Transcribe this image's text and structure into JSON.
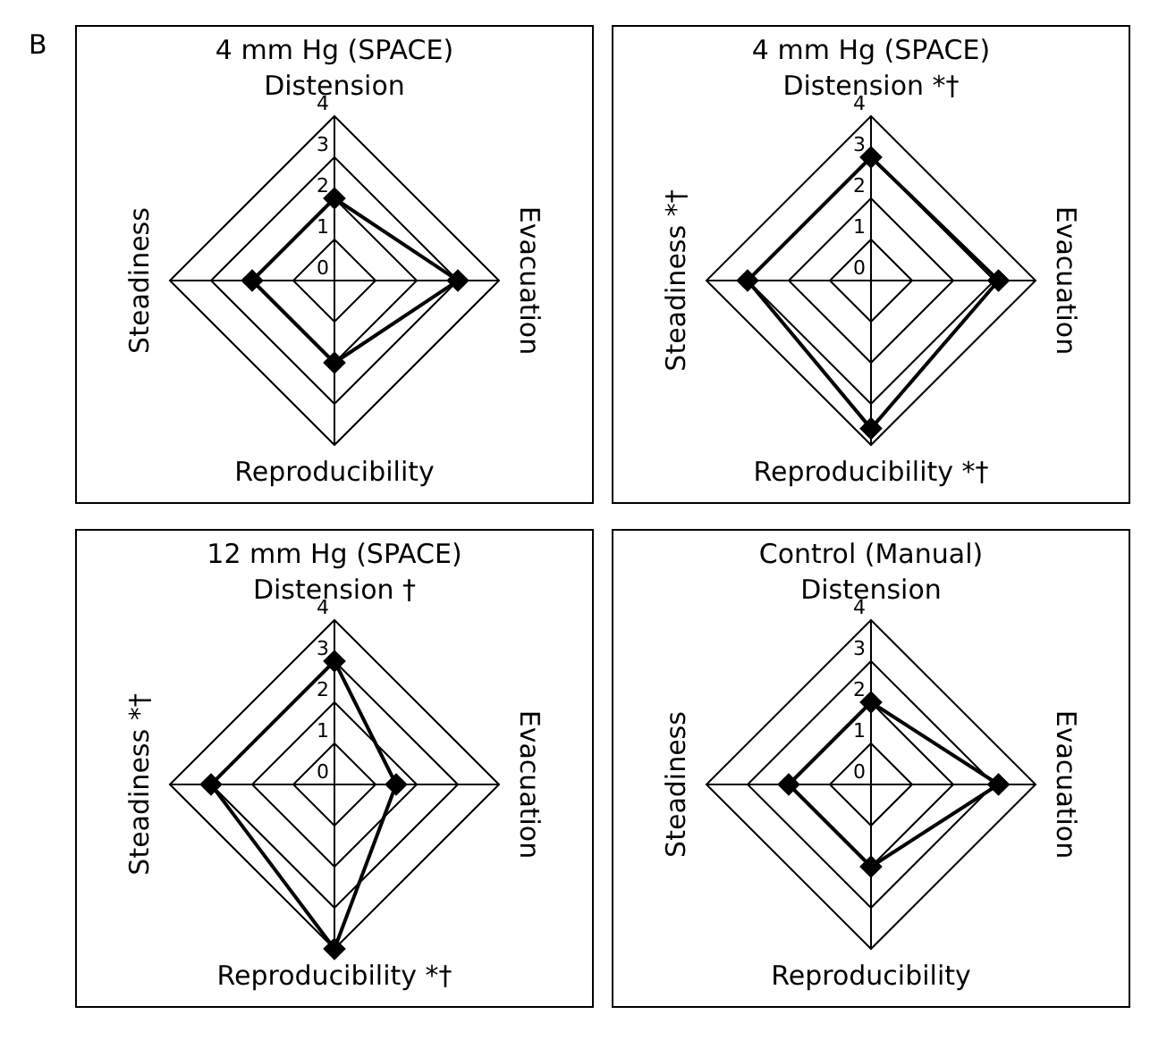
{
  "chart_data": [
    {
      "type": "radar",
      "title": "4 mm Hg (SPACE)",
      "annotations": [
        "B"
      ],
      "categories": [
        "Distension",
        "Evacuation",
        "Reproducibility",
        "Steadiness"
      ],
      "series": [
        {
          "color": "#000000",
          "values": [
            2.0,
            3.0,
            2.0,
            2.0
          ]
        }
      ],
      "ylim": [
        0,
        4
      ],
      "yticks": [
        0,
        1,
        2,
        3,
        4
      ],
      "grid": true,
      "marker": "diamond"
    },
    {
      "type": "radar",
      "title": "4 mm Hg (SPACE)",
      "categories": [
        "Distension *†",
        "Evacuation",
        "Reproducibility *†",
        "Steadiness *†"
      ],
      "series": [
        {
          "color": "#000000",
          "values": [
            3.0,
            3.1,
            3.6,
            3.0
          ]
        }
      ],
      "ylim": [
        0,
        4
      ],
      "yticks": [
        0,
        1,
        2,
        3,
        4
      ],
      "grid": true,
      "marker": "diamond"
    },
    {
      "type": "radar",
      "title": "12 mm Hg (SPACE)",
      "categories": [
        "Distension †",
        "Evacuation",
        "Reproducibility *†",
        "Steadiness *†"
      ],
      "series": [
        {
          "color": "#000000",
          "values": [
            3.0,
            1.5,
            4.0,
            3.0
          ]
        }
      ],
      "ylim": [
        0,
        4
      ],
      "yticks": [
        0,
        1,
        2,
        3,
        4
      ],
      "grid": true,
      "marker": "diamond"
    },
    {
      "type": "radar",
      "title": "Control (Manual)",
      "categories": [
        "Distension",
        "Evacuation",
        "Reproducibility",
        "Steadiness"
      ],
      "series": [
        {
          "color": "#000000",
          "values": [
            2.0,
            3.1,
            2.0,
            2.0
          ]
        }
      ],
      "ylim": [
        0,
        4
      ],
      "yticks": [
        0,
        1,
        2,
        3,
        4
      ],
      "grid": true,
      "marker": "diamond"
    }
  ]
}
